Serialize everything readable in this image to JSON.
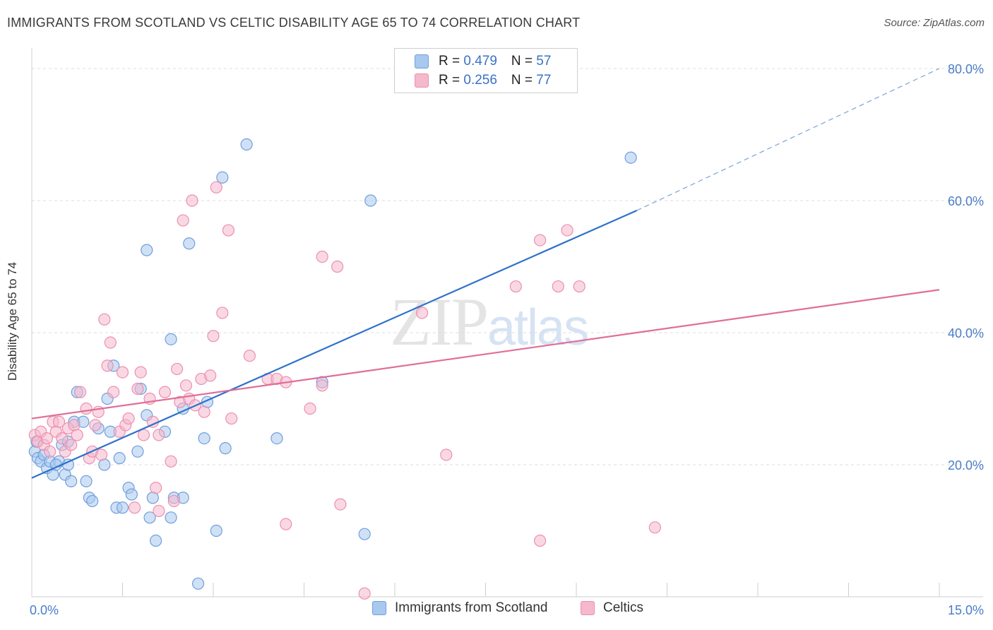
{
  "title": "IMMIGRANTS FROM SCOTLAND VS CELTIC DISABILITY AGE 65 TO 74 CORRELATION CHART",
  "source": "Source: ZipAtlas.com",
  "watermark": {
    "zip": "ZIP",
    "atlas": "atlas"
  },
  "legend": {
    "rows": [
      {
        "r_label": "R = ",
        "r_value": "0.479",
        "n_label": "N = ",
        "n_value": "57",
        "color": "#a9c8ef"
      },
      {
        "r_label": "R = ",
        "r_value": "0.256",
        "n_label": "N = ",
        "n_value": "77",
        "color": "#f5b8cc"
      }
    ]
  },
  "chart_data": {
    "type": "scatter",
    "title": "IMMIGRANTS FROM SCOTLAND VS CELTIC DISABILITY AGE 65 TO 74 CORRELATION CHART",
    "xlabel": "",
    "ylabel": "Disability Age 65 to 74",
    "xlim": [
      0,
      15
    ],
    "ylim": [
      0,
      80
    ],
    "x_ticks": [
      "0.0%",
      "15.0%"
    ],
    "y_ticks": [
      "20.0%",
      "40.0%",
      "60.0%",
      "80.0%"
    ],
    "grid": true,
    "legend_position": "top-center",
    "series": [
      {
        "name": "Immigrants from Scotland",
        "color": "#6f9fdc",
        "fill": "#a9c8ef",
        "trend": {
          "x0": 0,
          "y0": 18.0,
          "x1": 10.0,
          "y1": 58.5,
          "dashed_to_x": 15,
          "dashed_to_y": 80.0
        },
        "points": [
          [
            0.05,
            22.0
          ],
          [
            0.08,
            23.5
          ],
          [
            0.1,
            21.0
          ],
          [
            0.15,
            20.5
          ],
          [
            0.2,
            21.5
          ],
          [
            0.25,
            19.5
          ],
          [
            0.3,
            20.5
          ],
          [
            0.35,
            18.5
          ],
          [
            0.45,
            20.5
          ],
          [
            0.5,
            23.0
          ],
          [
            0.55,
            18.5
          ],
          [
            0.6,
            20.0
          ],
          [
            0.65,
            17.5
          ],
          [
            0.7,
            26.5
          ],
          [
            0.75,
            31.0
          ],
          [
            0.85,
            26.5
          ],
          [
            0.9,
            17.5
          ],
          [
            0.95,
            15.0
          ],
          [
            1.0,
            14.5
          ],
          [
            1.1,
            25.5
          ],
          [
            1.2,
            20.0
          ],
          [
            1.25,
            30.0
          ],
          [
            1.3,
            25.0
          ],
          [
            1.35,
            35.0
          ],
          [
            1.4,
            13.5
          ],
          [
            1.45,
            21.0
          ],
          [
            1.5,
            13.5
          ],
          [
            1.6,
            16.5
          ],
          [
            1.65,
            15.5
          ],
          [
            1.75,
            22.0
          ],
          [
            1.8,
            31.5
          ],
          [
            1.9,
            52.5
          ],
          [
            1.9,
            27.5
          ],
          [
            1.95,
            12.0
          ],
          [
            2.0,
            15.0
          ],
          [
            2.05,
            8.5
          ],
          [
            2.2,
            25.0
          ],
          [
            2.3,
            39.0
          ],
          [
            2.3,
            12.0
          ],
          [
            2.35,
            15.0
          ],
          [
            2.5,
            15.0
          ],
          [
            2.5,
            28.5
          ],
          [
            2.6,
            53.5
          ],
          [
            2.75,
            2.0
          ],
          [
            2.85,
            24.0
          ],
          [
            2.9,
            29.5
          ],
          [
            3.05,
            10.0
          ],
          [
            3.15,
            63.5
          ],
          [
            3.2,
            22.5
          ],
          [
            3.55,
            68.5
          ],
          [
            4.05,
            24.0
          ],
          [
            4.8,
            32.5
          ],
          [
            5.5,
            9.5
          ],
          [
            5.6,
            60.0
          ],
          [
            9.9,
            66.5
          ],
          [
            0.6,
            23.5
          ],
          [
            0.4,
            20.0
          ]
        ]
      },
      {
        "name": "Celtics",
        "color": "#ec8fb0",
        "fill": "#f5b8cc",
        "trend": {
          "x0": 0,
          "y0": 27.0,
          "x1": 15,
          "y1": 46.5
        },
        "points": [
          [
            0.05,
            24.5
          ],
          [
            0.1,
            23.5
          ],
          [
            0.15,
            25.0
          ],
          [
            0.2,
            23.0
          ],
          [
            0.25,
            24.0
          ],
          [
            0.3,
            22.0
          ],
          [
            0.35,
            26.5
          ],
          [
            0.4,
            25.0
          ],
          [
            0.5,
            24.0
          ],
          [
            0.55,
            22.0
          ],
          [
            0.6,
            25.5
          ],
          [
            0.65,
            23.0
          ],
          [
            0.7,
            26.0
          ],
          [
            0.75,
            24.5
          ],
          [
            0.8,
            31.0
          ],
          [
            0.9,
            28.5
          ],
          [
            0.95,
            21.0
          ],
          [
            1.0,
            22.0
          ],
          [
            1.1,
            28.0
          ],
          [
            1.15,
            21.5
          ],
          [
            1.2,
            42.0
          ],
          [
            1.25,
            35.0
          ],
          [
            1.3,
            38.5
          ],
          [
            1.35,
            31.0
          ],
          [
            1.45,
            25.0
          ],
          [
            1.5,
            34.0
          ],
          [
            1.55,
            26.0
          ],
          [
            1.6,
            27.0
          ],
          [
            1.7,
            13.5
          ],
          [
            1.75,
            31.5
          ],
          [
            1.8,
            34.0
          ],
          [
            1.85,
            24.5
          ],
          [
            1.95,
            30.0
          ],
          [
            2.0,
            26.5
          ],
          [
            2.05,
            16.5
          ],
          [
            2.1,
            24.5
          ],
          [
            2.1,
            13.0
          ],
          [
            2.2,
            31.0
          ],
          [
            2.3,
            20.5
          ],
          [
            2.35,
            14.5
          ],
          [
            2.4,
            34.5
          ],
          [
            2.45,
            29.5
          ],
          [
            2.5,
            57.0
          ],
          [
            2.55,
            32.0
          ],
          [
            2.6,
            30.0
          ],
          [
            2.65,
            60.0
          ],
          [
            2.7,
            29.0
          ],
          [
            2.8,
            33.0
          ],
          [
            2.85,
            28.0
          ],
          [
            2.95,
            33.5
          ],
          [
            3.0,
            39.5
          ],
          [
            3.05,
            62.0
          ],
          [
            3.15,
            43.0
          ],
          [
            3.25,
            55.5
          ],
          [
            3.3,
            27.0
          ],
          [
            3.6,
            36.5
          ],
          [
            3.9,
            33.0
          ],
          [
            4.05,
            33.0
          ],
          [
            4.2,
            32.5
          ],
          [
            4.2,
            11.0
          ],
          [
            4.6,
            28.5
          ],
          [
            4.8,
            51.5
          ],
          [
            4.8,
            32.0
          ],
          [
            5.05,
            50.0
          ],
          [
            5.1,
            14.0
          ],
          [
            5.5,
            0.5
          ],
          [
            6.45,
            43.0
          ],
          [
            6.85,
            21.5
          ],
          [
            8.0,
            47.0
          ],
          [
            8.4,
            54.0
          ],
          [
            8.4,
            8.5
          ],
          [
            8.7,
            47.0
          ],
          [
            8.85,
            55.5
          ],
          [
            9.05,
            47.0
          ],
          [
            10.3,
            10.5
          ],
          [
            0.45,
            26.5
          ],
          [
            1.05,
            26.0
          ]
        ]
      }
    ]
  },
  "bottom_legend": [
    {
      "label": "Immigrants from Scotland",
      "color": "#a9c8ef",
      "border": "#6f9fdc"
    },
    {
      "label": "Celtics",
      "color": "#f5b8cc",
      "border": "#ec8fb0"
    }
  ]
}
